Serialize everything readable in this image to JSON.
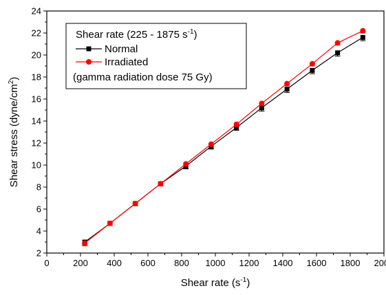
{
  "chart_data": {
    "type": "line",
    "xlabel": "Shear rate (s",
    "xlabel_sup": "-1",
    "xlabel_end": ")",
    "ylabel": "Shear stress (dyne/cm",
    "ylabel_sup": "2",
    "ylabel_end": ")",
    "xlim": [
      0,
      2000
    ],
    "ylim": [
      2,
      24
    ],
    "xticks": [
      "0",
      "200",
      "400",
      "600",
      "800",
      "1000",
      "1200",
      "1400",
      "1600",
      "1800",
      "2000"
    ],
    "yticks": [
      "2",
      "4",
      "6",
      "8",
      "10",
      "12",
      "14",
      "16",
      "18",
      "20",
      "22",
      "24"
    ],
    "grid": false,
    "legend_position": "top-left",
    "legend": {
      "title": "Shear rate (225 - 1875 s",
      "title_sup": "-1",
      "title_end": ")",
      "note": "(gamma radiation dose 75 Gy)"
    },
    "x": [
      225,
      375,
      525,
      675,
      825,
      975,
      1125,
      1275,
      1425,
      1575,
      1725,
      1875
    ],
    "series": [
      {
        "name": "Normal",
        "color": "#000000",
        "marker": "square",
        "values": [
          3.0,
          4.7,
          6.5,
          8.3,
          9.9,
          11.7,
          13.4,
          15.2,
          16.9,
          18.6,
          20.2,
          21.6
        ],
        "error": [
          0.25,
          0.2,
          0.2,
          0.2,
          0.25,
          0.25,
          0.25,
          0.3,
          0.3,
          0.3,
          0.3,
          0.3
        ]
      },
      {
        "name": "Irradiated",
        "color": "#ff0000",
        "marker": "circle",
        "values": [
          2.9,
          4.7,
          6.5,
          8.3,
          10.1,
          11.9,
          13.7,
          15.6,
          17.4,
          19.2,
          21.1,
          22.2
        ],
        "error": [
          0.25,
          0.2,
          0.2,
          0.2,
          0.2,
          0.2,
          0.2,
          0.2,
          0.2,
          0.2,
          0.2,
          0.2
        ]
      }
    ]
  }
}
